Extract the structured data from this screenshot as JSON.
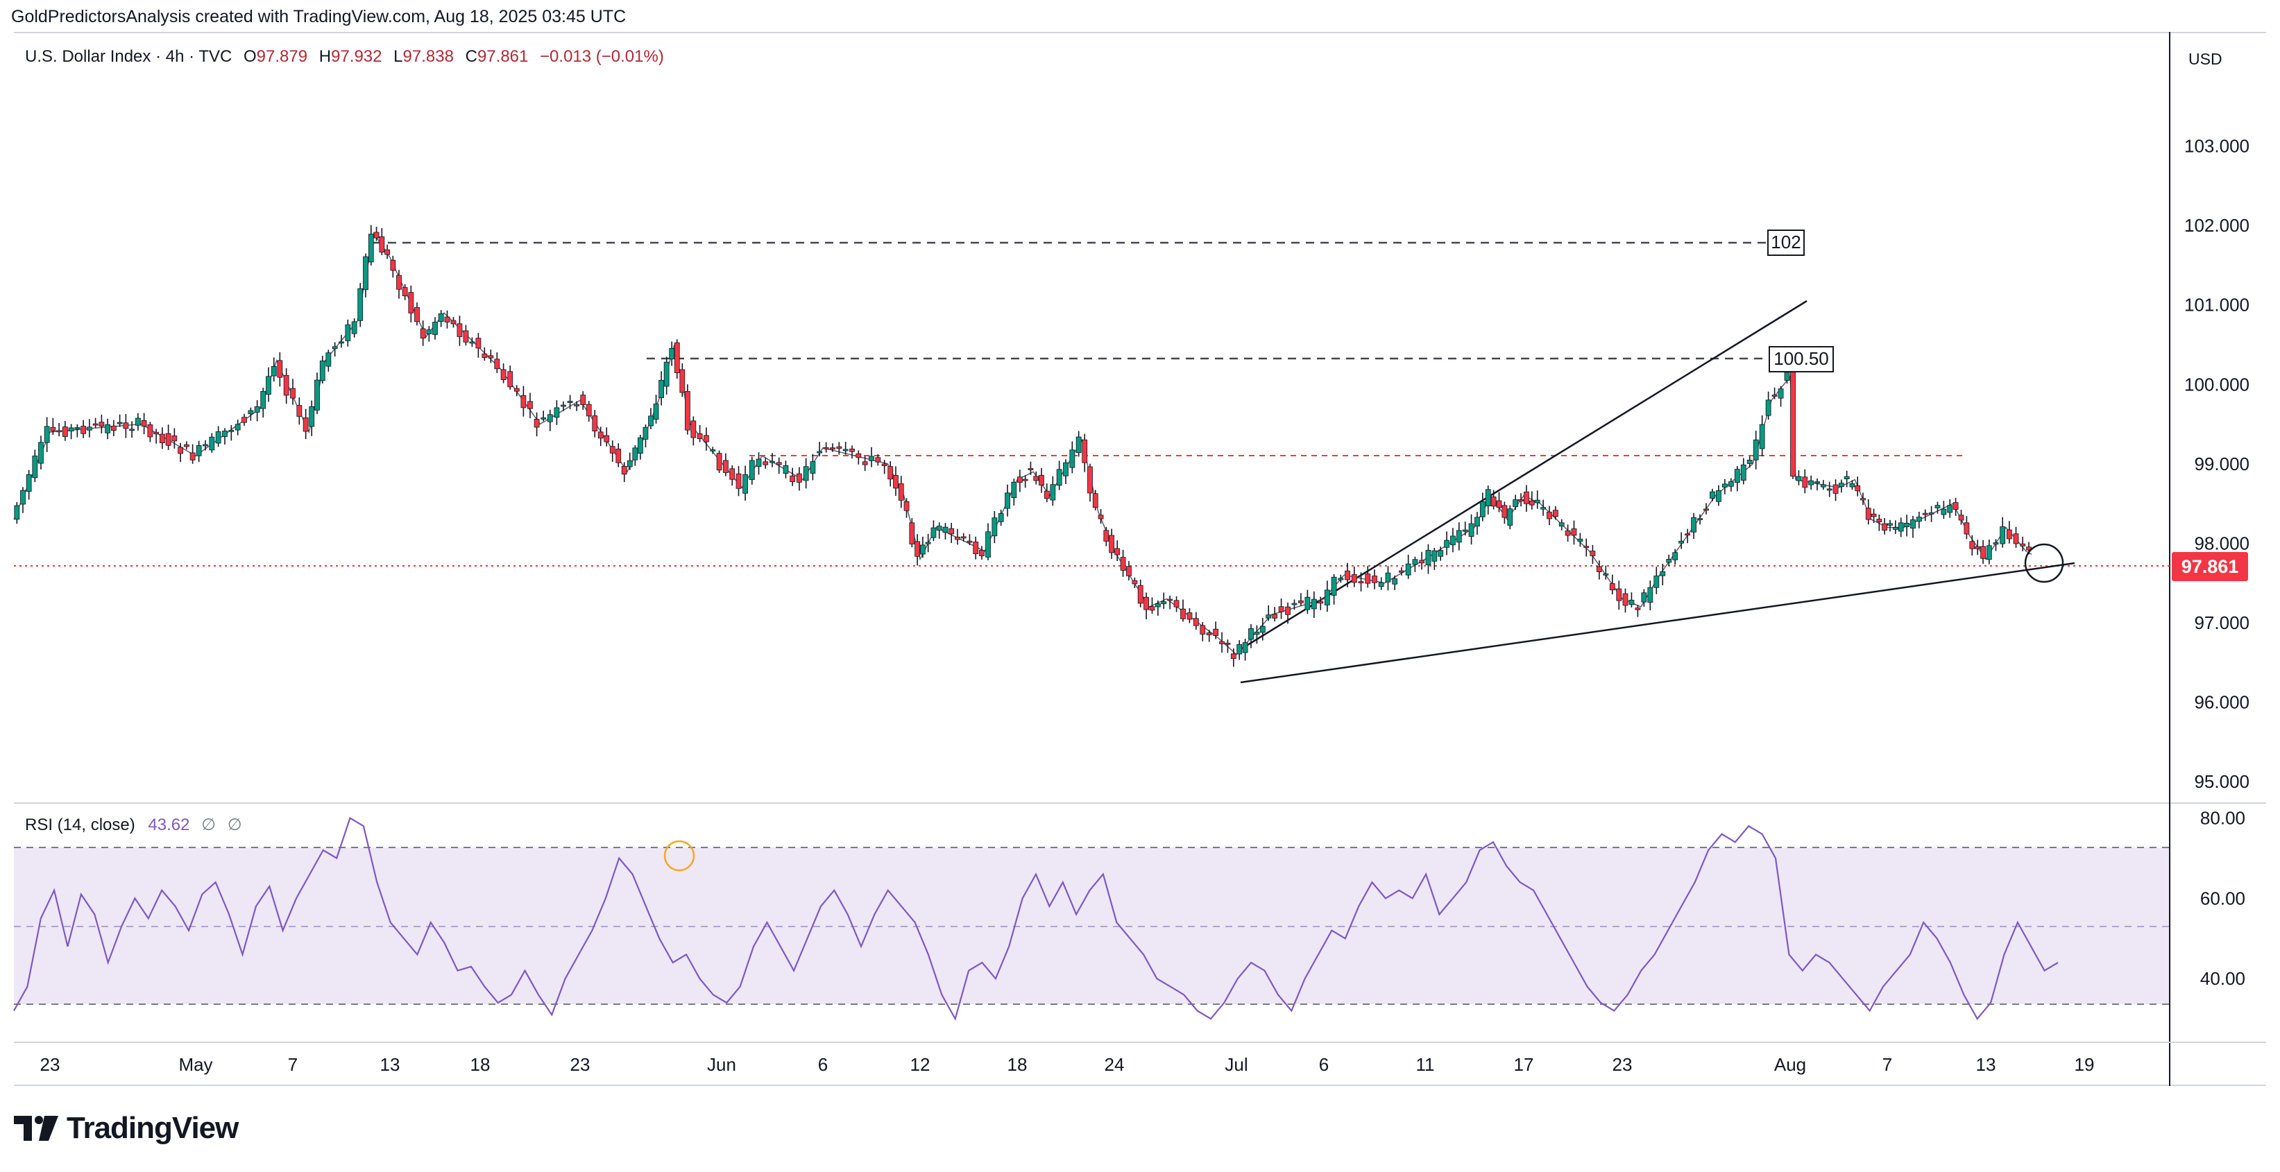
{
  "credit": "GoldPredictorsAnalysis created with TradingView.com, Aug 18, 2025 03:45 UTC",
  "legend": {
    "symbol": "U.S. Dollar Index · 4h · TVC",
    "open_label": "O",
    "open": "97.879",
    "high_label": "H",
    "high": "97.932",
    "low_label": "L",
    "low": "97.838",
    "close_label": "C",
    "close": "97.861",
    "change": "−0.013 (−0.01%)"
  },
  "rsi_legend": {
    "label": "RSI (14, close)",
    "value": "43.62",
    "na1": "∅",
    "na2": "∅"
  },
  "currency": "USD",
  "brand": "TradingView",
  "icons": {
    "brand_mark": "tradingview-logo-icon"
  },
  "colors": {
    "up": "#089981",
    "down": "#f23645",
    "rsi": "#7e57c2",
    "rsi_band": "#ede7f6",
    "price_line": "#f23645"
  },
  "chart_data": [
    {
      "type": "candlestick",
      "symbol": "U.S. Dollar Index",
      "timeframe": "4h",
      "ylim": [
        94.8,
        104.0
      ],
      "y_ticks": [
        "103.000",
        "102.000",
        "101.000",
        "100.000",
        "99.000",
        "98.000",
        "97.000",
        "96.000",
        "95.000"
      ],
      "x_ticks": [
        "23",
        "May",
        "7",
        "13",
        "18",
        "23",
        "Jun",
        "6",
        "12",
        "18",
        "24",
        "Jul",
        "6",
        "11",
        "17",
        "23",
        "Aug",
        "7",
        "13",
        "19"
      ],
      "close_path": [
        [
          "Apr 21",
          98.3
        ],
        [
          "Apr 23",
          99.4
        ],
        [
          "Apr 28",
          99.5
        ],
        [
          "May 1",
          99.1
        ],
        [
          "May 5",
          99.7
        ],
        [
          "May 6",
          100.3
        ],
        [
          "May 8",
          99.4
        ],
        [
          "May 9",
          100.3
        ],
        [
          "May 11",
          100.8
        ],
        [
          "May 12",
          101.9
        ],
        [
          "May 13",
          101.6
        ],
        [
          "May 15",
          100.6
        ],
        [
          "May 16",
          100.9
        ],
        [
          "May 19",
          100.2
        ],
        [
          "May 21",
          99.5
        ],
        [
          "May 23",
          99.8
        ],
        [
          "May 26",
          98.9
        ],
        [
          "May 27",
          99.3
        ],
        [
          "May 28",
          99.8
        ],
        [
          "May 29",
          100.5
        ],
        [
          "May 30",
          99.5
        ],
        [
          "Jun 2",
          98.7
        ],
        [
          "Jun 3",
          99.1
        ],
        [
          "Jun 5",
          98.8
        ],
        [
          "Jun 6",
          99.2
        ],
        [
          "Jun 10",
          99.0
        ],
        [
          "Jun 11",
          98.6
        ],
        [
          "Jun 12",
          97.8
        ],
        [
          "Jun 13",
          98.2
        ],
        [
          "Jun 16",
          97.9
        ],
        [
          "Jun 18",
          98.8
        ],
        [
          "Jun 19",
          98.9
        ],
        [
          "Jun 20",
          98.6
        ],
        [
          "Jun 22",
          99.3
        ],
        [
          "Jun 23",
          98.4
        ],
        [
          "Jun 24",
          97.9
        ],
        [
          "Jun 26",
          97.2
        ],
        [
          "Jun 27",
          97.3
        ],
        [
          "Jun 30",
          96.8
        ],
        [
          "Jul 1",
          96.6
        ],
        [
          "Jul 3",
          97.1
        ],
        [
          "Jul 6",
          97.3
        ],
        [
          "Jul 7",
          97.6
        ],
        [
          "Jul 9",
          97.5
        ],
        [
          "Jul 11",
          97.8
        ],
        [
          "Jul 14",
          98.2
        ],
        [
          "Jul 15",
          98.6
        ],
        [
          "Jul 16",
          98.3
        ],
        [
          "Jul 17",
          98.6
        ],
        [
          "Jul 18",
          98.5
        ],
        [
          "Jul 21",
          97.9
        ],
        [
          "Jul 23",
          97.3
        ],
        [
          "Jul 24",
          97.2
        ],
        [
          "Jul 25",
          97.6
        ],
        [
          "Jul 28",
          98.6
        ],
        [
          "Jul 30",
          99.0
        ],
        [
          "Jul 31",
          99.8
        ],
        [
          "Aug 1",
          100.1
        ],
        [
          "Aug 1",
          98.8
        ],
        [
          "Aug 4",
          98.7
        ],
        [
          "Aug 5",
          98.8
        ],
        [
          "Aug 6",
          98.3
        ],
        [
          "Aug 7",
          98.2
        ],
        [
          "Aug 8",
          98.2
        ],
        [
          "Aug 11",
          98.5
        ],
        [
          "Aug 12",
          98.1
        ],
        [
          "Aug 13",
          97.8
        ],
        [
          "Aug 14",
          98.2
        ],
        [
          "Aug 15",
          97.9
        ],
        [
          "Aug 15",
          97.86
        ]
      ],
      "swing_high": {
        "date": "May 12",
        "value": 102.0
      },
      "swing_low": {
        "date": "Jul 1",
        "value": 96.4
      },
      "annotations": [
        {
          "type": "horizontal_dashed",
          "label": "102",
          "value": 102.0
        },
        {
          "type": "horizontal_dashed",
          "label": "100.50",
          "value": 100.5
        },
        {
          "type": "horizontal_dashed_red",
          "value": 99.2
        },
        {
          "type": "trendline",
          "from": [
            "Jul 1",
            96.4
          ],
          "to": [
            "Aug 16",
            97.86
          ]
        },
        {
          "type": "trendline",
          "from": [
            "Jul 1",
            96.8
          ],
          "to": [
            "Jul 31",
            101.2
          ]
        },
        {
          "type": "circle",
          "at": [
            "Aug 15",
            97.86
          ]
        }
      ],
      "last_price": "97.861"
    },
    {
      "type": "line",
      "name": "RSI (14, close)",
      "ylim": [
        25,
        82
      ],
      "y_ticks": [
        "80.00",
        "60.00",
        "40.00"
      ],
      "bands": {
        "upper": 70,
        "middle": 50,
        "lower": 30
      },
      "last_value": 43.62,
      "series": [
        {
          "name": "RSI",
          "values": [
            32,
            38,
            55,
            62,
            48,
            61,
            56,
            44,
            53,
            60,
            55,
            62,
            58,
            52,
            61,
            64,
            56,
            46,
            58,
            63,
            52,
            60,
            66,
            72,
            70,
            80,
            78,
            64,
            54,
            50,
            46,
            54,
            49,
            42,
            43,
            38,
            34,
            36,
            42,
            36,
            31,
            40,
            46,
            52,
            60,
            70,
            66,
            58,
            50,
            44,
            46,
            40,
            36,
            34,
            38,
            48,
            54,
            48,
            42,
            50,
            58,
            62,
            56,
            48,
            56,
            62,
            58,
            54,
            46,
            36,
            30,
            42,
            44,
            40,
            48,
            60,
            66,
            58,
            64,
            56,
            62,
            66,
            54,
            50,
            46,
            40,
            38,
            36,
            32,
            30,
            34,
            40,
            44,
            42,
            36,
            32,
            40,
            46,
            52,
            50,
            58,
            64,
            60,
            62,
            60,
            66,
            56,
            60,
            64,
            72,
            74,
            68,
            64,
            62,
            56,
            50,
            44,
            38,
            34,
            32,
            36,
            42,
            46,
            52,
            58,
            64,
            72,
            76,
            74,
            78,
            76,
            70,
            46,
            42,
            46,
            44,
            40,
            36,
            32,
            38,
            42,
            46,
            54,
            50,
            44,
            36,
            30,
            34,
            46,
            54,
            48,
            42,
            44
          ]
        }
      ]
    }
  ]
}
